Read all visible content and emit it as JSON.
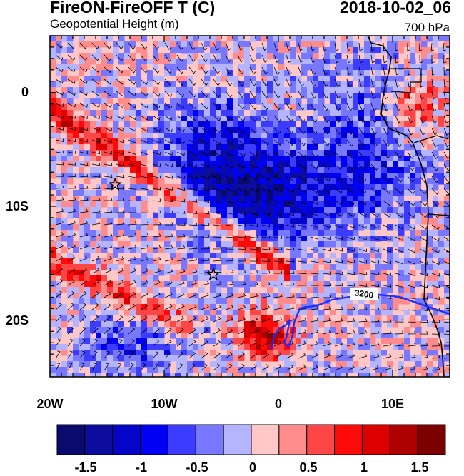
{
  "header": {
    "title": "FireON-FireOFF T (C)",
    "datetime": "2018-10-02_06",
    "subtitle": "Geopotential Height (m)",
    "level": "700 hPa"
  },
  "map": {
    "lon_range": [
      -20,
      15
    ],
    "lat_range": [
      -25,
      5
    ],
    "y_ticks": [
      {
        "lat": 0,
        "label": "0"
      },
      {
        "lat": -10,
        "label": "10S"
      },
      {
        "lat": -20,
        "label": "20S"
      }
    ],
    "x_ticks": [
      {
        "lon": -20,
        "label": "20W"
      },
      {
        "lon": -10,
        "label": "10W"
      },
      {
        "lon": 0,
        "label": "0"
      },
      {
        "lon": 10,
        "label": "10E"
      }
    ],
    "contour_label": "3200",
    "contour_color": "#1f2bff",
    "stars": [
      {
        "lon": -14.3,
        "lat": -8.1
      },
      {
        "lon": -5.7,
        "lat": -16.0
      }
    ],
    "coastline_color": "#000000"
  },
  "colorbar": {
    "levels": [
      "-1.5",
      "-1",
      "-0.5",
      "0",
      "0.5",
      "1",
      "1.5"
    ],
    "colors": [
      "#0a0a6e",
      "#0c0c9e",
      "#0505c8",
      "#0000f5",
      "#3c3cff",
      "#7878ff",
      "#b4b4ff",
      "#ffc8c8",
      "#ff8c8c",
      "#ff4646",
      "#ff0a0a",
      "#dc0000",
      "#af0000",
      "#7d0000"
    ]
  }
}
